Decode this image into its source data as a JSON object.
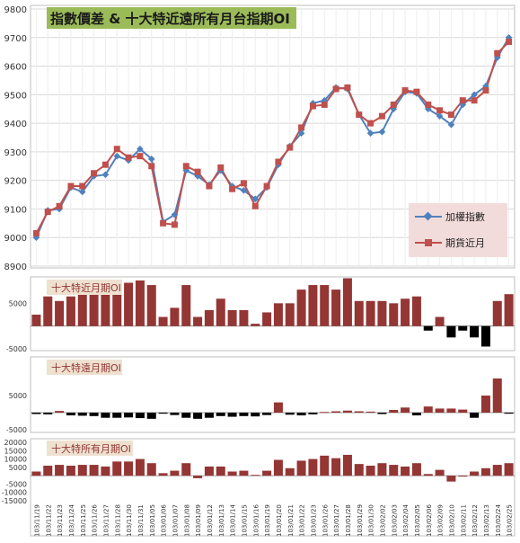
{
  "chart_data": [
    {
      "type": "line",
      "title": "指數價差 & 十大特近遠所有月台指期OI",
      "ylim": [
        8900,
        9800
      ],
      "yticks": [
        8900,
        9000,
        9100,
        9200,
        9300,
        9400,
        9500,
        9600,
        9700,
        9800
      ],
      "grid": true,
      "legend": "bottom-right",
      "series": [
        {
          "name": "加權指數",
          "color": "#4F81BD",
          "marker": "diamond",
          "values": [
            9000,
            9095,
            9100,
            9175,
            9160,
            9215,
            9220,
            9285,
            9270,
            9310,
            9275,
            9055,
            9080,
            9235,
            9215,
            9185,
            9235,
            9180,
            9165,
            9135,
            9175,
            9255,
            9320,
            9365,
            9470,
            9480,
            9525,
            9520,
            9430,
            9365,
            9370,
            9450,
            9510,
            9505,
            9450,
            9425,
            9395,
            9465,
            9500,
            9530,
            9630,
            9700
          ]
        },
        {
          "name": "期貨近月",
          "color": "#C0504D",
          "marker": "square",
          "values": [
            9015,
            9090,
            9110,
            9180,
            9180,
            9225,
            9255,
            9310,
            9280,
            9285,
            9250,
            9050,
            9045,
            9250,
            9230,
            9180,
            9245,
            9170,
            9190,
            9110,
            9180,
            9265,
            9315,
            9385,
            9460,
            9465,
            9520,
            9525,
            9430,
            9400,
            9425,
            9465,
            9515,
            9510,
            9465,
            9445,
            9430,
            9480,
            9480,
            9515,
            9645,
            9685
          ]
        }
      ]
    },
    {
      "type": "bar",
      "title": "十大特近月期OI",
      "ylim": [
        -5000,
        10000
      ],
      "yticks": [
        -5000,
        5000
      ],
      "ytick_labels": [
        "-5000",
        "5000"
      ],
      "color": "#943634",
      "values": [
        2500,
        6500,
        5500,
        6500,
        7000,
        7000,
        7000,
        10000,
        9500,
        10000,
        9000,
        2000,
        4000,
        9000,
        2000,
        3500,
        6000,
        3500,
        3500,
        500,
        3000,
        5000,
        5000,
        8000,
        9000,
        9000,
        8000,
        10500,
        5500,
        5500,
        5500,
        5000,
        6000,
        6500,
        -1000,
        2000,
        -2500,
        -1000,
        -2500,
        -4500,
        5500,
        7000
      ]
    },
    {
      "type": "bar",
      "title": "十大特遠月期OI",
      "ylim": [
        -5000,
        15000
      ],
      "yticks": [
        -5000,
        5000
      ],
      "ytick_labels": [
        "-5000",
        "5000"
      ],
      "color": "#943634",
      "values": [
        -400,
        -500,
        500,
        -800,
        -900,
        -1000,
        -1500,
        -1500,
        -1400,
        -1600,
        -1800,
        -300,
        -700,
        -1500,
        -1800,
        -1500,
        -1000,
        -1200,
        -1000,
        -1100,
        -700,
        3000,
        -600,
        -800,
        -500,
        200,
        400,
        600,
        400,
        300,
        -400,
        800,
        1500,
        -800,
        1800,
        1200,
        1200,
        900,
        -1500,
        5000,
        10000,
        -300
      ]
    },
    {
      "type": "bar",
      "title": "十大特所有月期OI",
      "ylim": [
        -15000,
        20000
      ],
      "yticks": [
        -15000,
        -10000,
        -5000,
        5000,
        10000,
        15000,
        20000
      ],
      "ytick_labels": [
        "-15000",
        "-10000",
        "-5000",
        "5000",
        "10000",
        "15000",
        "20000"
      ],
      "color": "#943634",
      "categories": [
        "103/11/19",
        "103/11/22",
        "103/11/23",
        "103/11/24",
        "103/11/25",
        "103/11/26",
        "103/11/27",
        "103/11/28",
        "103/11/30",
        "103/11/31",
        "103/01/05",
        "103/01/06",
        "103/01/07",
        "103/01/08",
        "103/01/09",
        "103/01/12",
        "103/01/13",
        "103/01/14",
        "103/01/15",
        "103/01/16",
        "103/01/19",
        "103/01/20",
        "103/01/21",
        "103/01/22",
        "103/01/23",
        "103/01/26",
        "103/01/27",
        "103/01/28",
        "103/01/29",
        "103/01/30",
        "103/02/02",
        "103/02/03",
        "103/02/04",
        "103/02/05",
        "103/02/06",
        "103/02/09",
        "103/02/10",
        "103/02/11",
        "103/02/12",
        "103/02/13",
        "103/02/24",
        "103/02/25"
      ],
      "values": [
        2500,
        6000,
        6500,
        6000,
        6500,
        6500,
        5500,
        8500,
        8500,
        10000,
        7500,
        1500,
        3000,
        7500,
        -1500,
        5500,
        5500,
        2500,
        3000,
        500,
        3000,
        9500,
        4500,
        9000,
        10000,
        12000,
        10500,
        12500,
        7000,
        6000,
        7500,
        6500,
        5500,
        7500,
        1000,
        3500,
        -3500,
        -500,
        2500,
        4500,
        6500,
        7500
      ]
    }
  ]
}
